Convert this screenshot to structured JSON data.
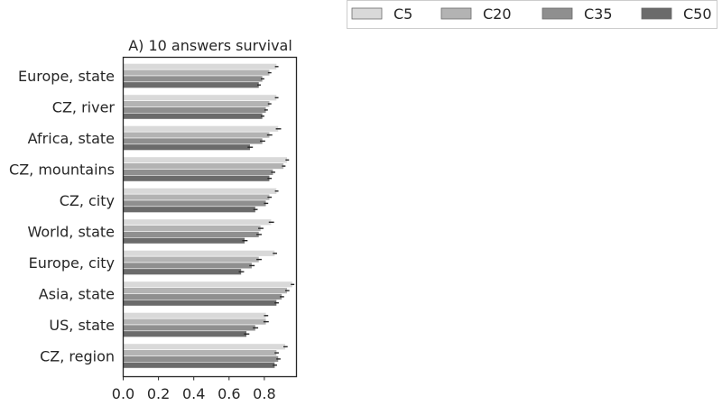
{
  "chart_data": {
    "type": "bar",
    "orientation": "horizontal",
    "title": "A) 10 answers survival",
    "xlabel": "",
    "ylabel": "",
    "xlim": [
      0,
      1.0
    ],
    "xticks": [
      "0.0",
      "0.2",
      "0.4",
      "0.6",
      "0.8"
    ],
    "grid": false,
    "legend_position": "top-right",
    "categories": [
      "Europe, state",
      "CZ, river",
      "Africa, state",
      "CZ, mountains",
      "CZ, city",
      "World, state",
      "Europe, city",
      "Asia, state",
      "US, state",
      "CZ, region"
    ],
    "series": [
      {
        "name": "C5",
        "color": "#d9d9d9",
        "values": [
          0.87,
          0.87,
          0.88,
          0.93,
          0.87,
          0.84,
          0.86,
          0.96,
          0.81,
          0.92
        ],
        "errors": [
          0.01,
          0.01,
          0.015,
          0.01,
          0.01,
          0.015,
          0.012,
          0.01,
          0.012,
          0.012
        ]
      },
      {
        "name": "C20",
        "color": "#b3b3b3",
        "values": [
          0.83,
          0.83,
          0.83,
          0.91,
          0.83,
          0.78,
          0.77,
          0.93,
          0.81,
          0.87
        ],
        "errors": [
          0.01,
          0.01,
          0.015,
          0.01,
          0.012,
          0.015,
          0.015,
          0.012,
          0.015,
          0.012
        ]
      },
      {
        "name": "C35",
        "color": "#8f8f8f",
        "values": [
          0.79,
          0.81,
          0.79,
          0.85,
          0.81,
          0.77,
          0.73,
          0.9,
          0.75,
          0.88
        ],
        "errors": [
          0.01,
          0.01,
          0.015,
          0.012,
          0.012,
          0.015,
          0.015,
          0.012,
          0.015,
          0.012
        ]
      },
      {
        "name": "C50",
        "color": "#6b6b6b",
        "values": [
          0.77,
          0.79,
          0.72,
          0.83,
          0.75,
          0.69,
          0.67,
          0.87,
          0.7,
          0.86
        ],
        "errors": [
          0.01,
          0.01,
          0.015,
          0.012,
          0.012,
          0.015,
          0.015,
          0.012,
          0.015,
          0.012
        ]
      }
    ]
  }
}
